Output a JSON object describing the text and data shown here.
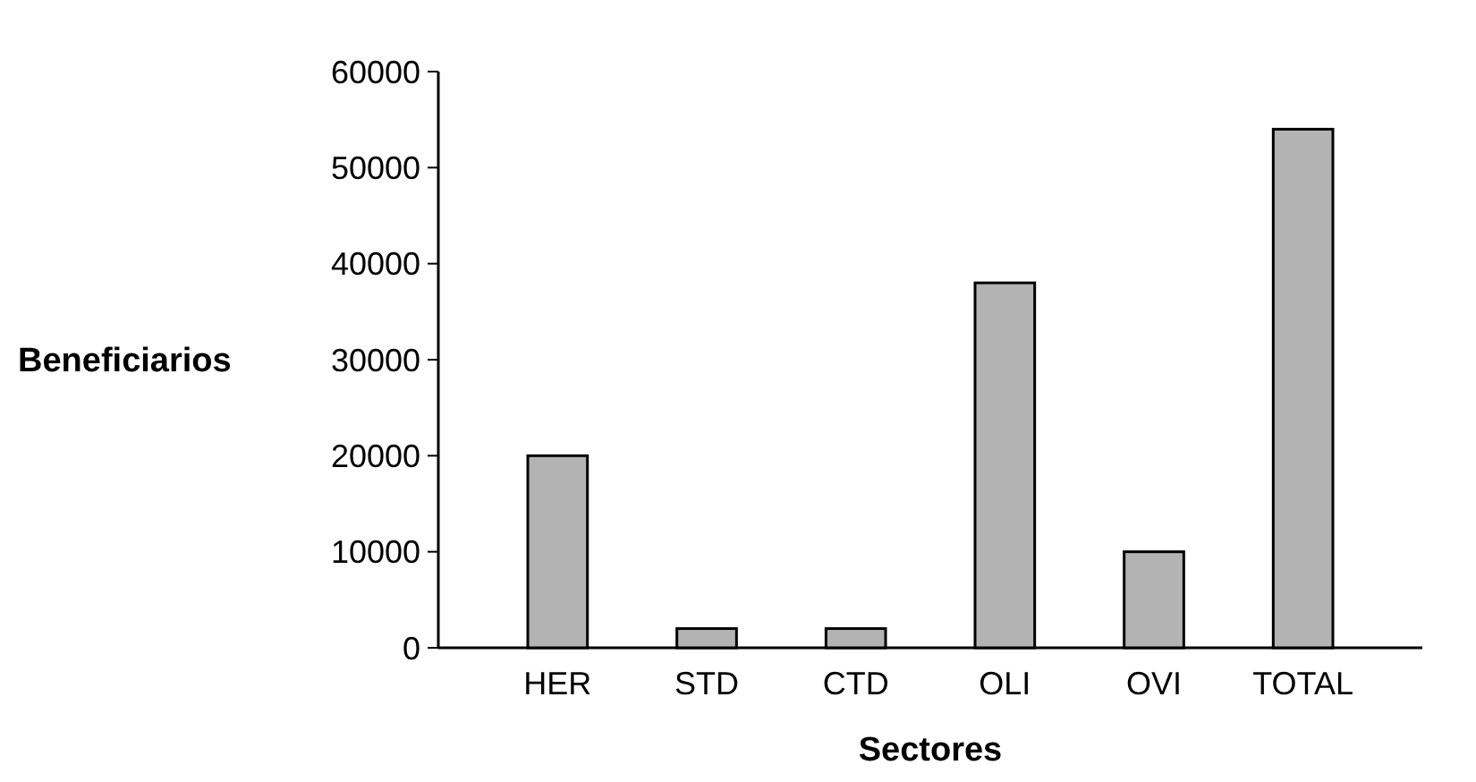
{
  "chart_data": {
    "type": "bar",
    "xlabel": "Sectores",
    "ylabel": "Beneficiarios",
    "categories": [
      "HER",
      "STD",
      "CTD",
      "OLI",
      "OVI",
      "TOTAL"
    ],
    "values": [
      20000,
      2000,
      2000,
      38000,
      10000,
      54000
    ],
    "color": "#b3b3b3",
    "ylim": [
      0,
      60000
    ],
    "yticks": [
      0,
      10000,
      20000,
      30000,
      40000,
      50000,
      60000
    ],
    "grid": false
  }
}
